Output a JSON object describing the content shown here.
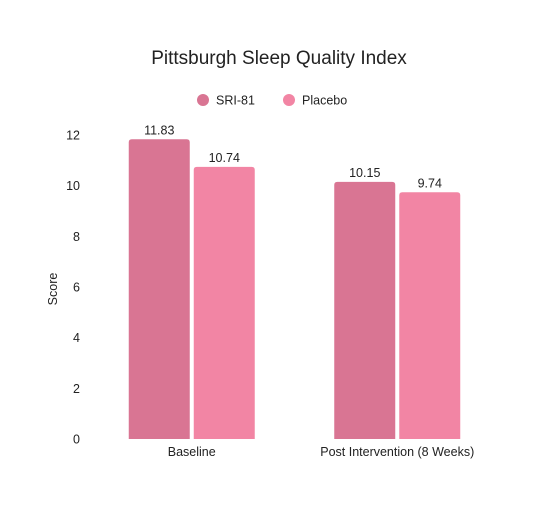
{
  "chart_data": {
    "type": "bar",
    "title": "Pittsburgh Sleep Quality Index",
    "xlabel": "",
    "ylabel": "Score",
    "ylim": [
      0,
      12
    ],
    "yticks": [
      0,
      2,
      4,
      6,
      8,
      10,
      12
    ],
    "grid": false,
    "legend_position": "top-center",
    "categories": [
      "Baseline",
      "Post Intervention (8 Weeks)"
    ],
    "series": [
      {
        "name": "SRI-81",
        "color": "#d97593",
        "values": [
          11.83,
          10.15
        ],
        "labels": [
          "11.83",
          "10.15"
        ]
      },
      {
        "name": "Placebo",
        "color": "#f285a4",
        "values": [
          10.74,
          9.74
        ],
        "labels": [
          "10.74",
          "9.74"
        ]
      }
    ]
  }
}
